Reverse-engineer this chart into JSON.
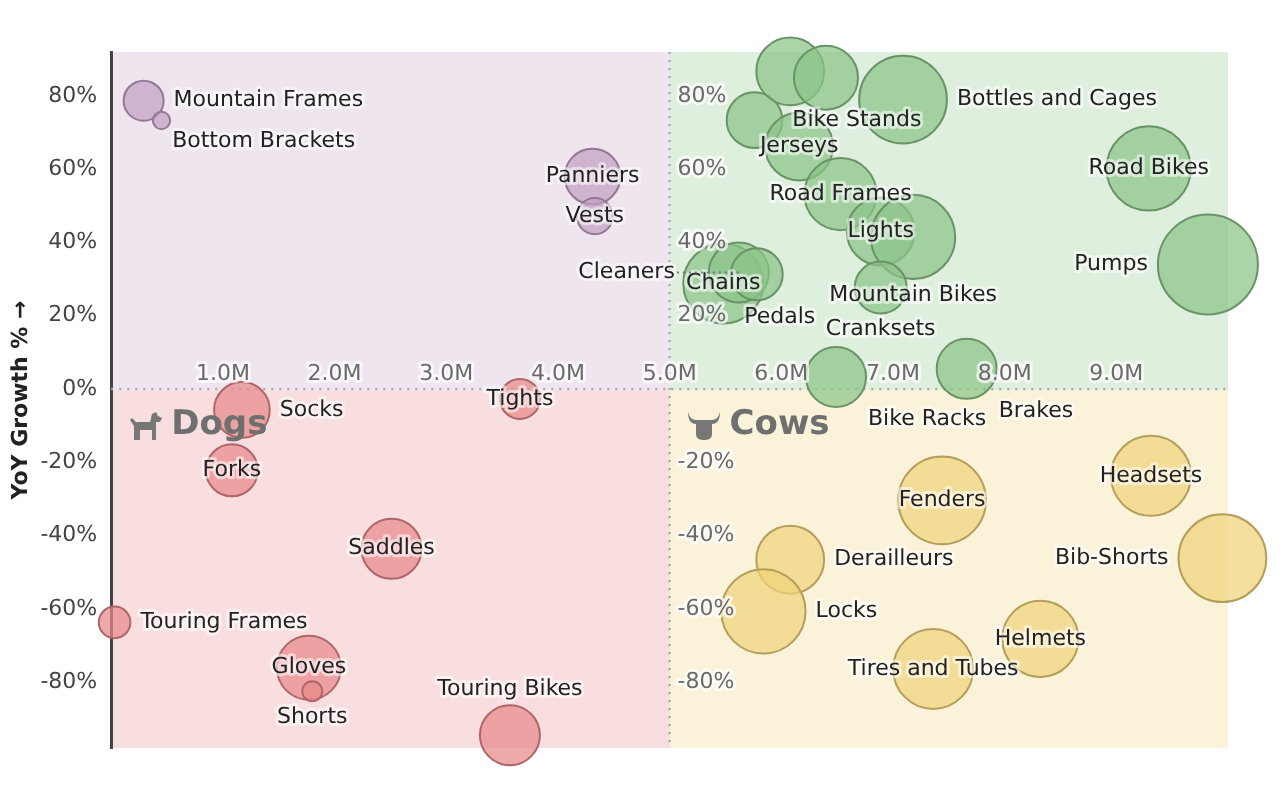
{
  "chart_data": {
    "type": "bubble",
    "ylabel": "YoY Growth % →",
    "grid": false,
    "legend": false,
    "xlim": [
      0,
      10
    ],
    "xticks": [
      {
        "value": 1,
        "label": "1.0M"
      },
      {
        "value": 2,
        "label": "2.0M"
      },
      {
        "value": 3,
        "label": "3.0M"
      },
      {
        "value": 4,
        "label": "4.0M"
      },
      {
        "value": 5,
        "label": "5.0M"
      },
      {
        "value": 6,
        "label": "6.0M"
      },
      {
        "value": 7,
        "label": "7.0M"
      },
      {
        "value": 8,
        "label": "8.0M"
      },
      {
        "value": 9,
        "label": "9.0M"
      }
    ],
    "ylim": [
      -98,
      92
    ],
    "yticks": [
      {
        "value": -80,
        "label": "-80%"
      },
      {
        "value": -60,
        "label": "-60%"
      },
      {
        "value": -40,
        "label": "-40%"
      },
      {
        "value": -20,
        "label": "-20%"
      },
      {
        "value": 0,
        "label": "0%"
      },
      {
        "value": 20,
        "label": "20%"
      },
      {
        "value": 40,
        "label": "40%"
      },
      {
        "value": 60,
        "label": "60%"
      },
      {
        "value": 80,
        "label": "80%"
      }
    ],
    "ref_lines": [
      {
        "axis": "x",
        "value": 5,
        "line_style": "dotted",
        "color": "#aaaaaa"
      },
      {
        "axis": "y",
        "value": 0,
        "line_style": "dotted",
        "color": "#aaaaaa"
      }
    ],
    "series": [
      {
        "color": "#c4a0c4",
        "x": [
          0.29,
          0.45,
          4.31,
          4.33
        ],
        "values": [
          78.7,
          73.3,
          58,
          47.2
        ],
        "sizes": [
          0.16,
          0.03,
          0.31,
          0.13
        ]
      },
      {
        "color": "#8cc488",
        "x": [
          5.76,
          6.16,
          6.53,
          6.89,
          7.18,
          7.09,
          9.29,
          9.82,
          5.48,
          5.62,
          5.78,
          6.89,
          6.49,
          7.66,
          6.08,
          6.4
        ],
        "values": [
          73.4,
          66.2,
          53.2,
          43.0,
          41.5,
          79.0,
          60.2,
          34.0,
          28.8,
          31.8,
          31.3,
          27.7,
          3.3,
          5.5,
          86.7,
          85
        ],
        "sizes": [
          0.31,
          0.46,
          0.52,
          0.46,
          0.71,
          0.77,
          0.71,
          1,
          0.64,
          0.36,
          0.27,
          0.27,
          0.36,
          0.36,
          0.46,
          0.41
        ]
      },
      {
        "color": "#e8898b",
        "x": [
          1.17,
          3.66,
          1.08,
          2.51,
          0.03,
          1.77,
          1.8,
          3.57
        ],
        "values": [
          -5.7,
          -2.7,
          -22.2,
          -43.6,
          -63.7,
          -76.1,
          -82.5,
          -94.5
        ],
        "sizes": [
          0.31,
          0.16,
          0.27,
          0.36,
          0.1,
          0.41,
          0.04,
          0.36
        ]
      },
      {
        "color": "#f0d27a",
        "x": [
          7.44,
          9.31,
          6.08,
          9.95,
          5.84,
          8.32,
          7.36
        ],
        "values": [
          -30.4,
          -23.7,
          -46.6,
          -46.2,
          -60.7,
          -68.2,
          -76.4
        ],
        "sizes": [
          0.77,
          0.64,
          0.46,
          0.77,
          0.71,
          0.58,
          0.64
        ]
      }
    ],
    "annotations": [
      "Dogs",
      "Cows",
      {
        "text": "Mountain Frames",
        "x": 0.29,
        "y": 78.7
      },
      {
        "text": "Bottom Brackets",
        "x": 0.45,
        "y": 73.3
      },
      {
        "text": "Panniers",
        "x": 4.31,
        "y": 58
      },
      {
        "text": "Vests",
        "x": 4.33,
        "y": 47.2
      },
      {
        "text": "Bike Stands",
        "x": 5.76,
        "y": 73.4
      },
      {
        "text": "Jerseys",
        "x": 6.16,
        "y": 66.2
      },
      {
        "text": "Road Frames",
        "x": 6.53,
        "y": 53.2
      },
      {
        "text": "Lights",
        "x": 6.89,
        "y": 43.0
      },
      {
        "text": "Mountain Bikes",
        "x": 7.18,
        "y": 41.5
      },
      {
        "text": "Bottles and Cages",
        "x": 7.09,
        "y": 79.0
      },
      {
        "text": "Road Bikes",
        "x": 9.29,
        "y": 60.2
      },
      {
        "text": "Pumps",
        "x": 9.82,
        "y": 34.0
      },
      {
        "text": "Chains",
        "x": 5.48,
        "y": 28.8
      },
      {
        "text": "Cleaners",
        "x": 5.62,
        "y": 31.8
      },
      {
        "text": "Pedals",
        "x": 5.78,
        "y": 31.3
      },
      {
        "text": "Cranksets",
        "x": 6.89,
        "y": 27.7
      },
      {
        "text": "Bike Racks",
        "x": 6.49,
        "y": 3.3
      },
      {
        "text": "Brakes",
        "x": 7.66,
        "y": 5.5
      },
      {
        "text": "Socks",
        "x": 1.17,
        "y": -5.7
      },
      {
        "text": "Tights",
        "x": 3.66,
        "y": -2.7
      },
      {
        "text": "Forks",
        "x": 1.08,
        "y": -22.2
      },
      {
        "text": "Saddles",
        "x": 2.51,
        "y": -43.6
      },
      {
        "text": "Touring Frames",
        "x": 0.03,
        "y": -63.7
      },
      {
        "text": "Gloves",
        "x": 1.77,
        "y": -76.1
      },
      {
        "text": "Shorts",
        "x": 1.8,
        "y": -82.5
      },
      {
        "text": "Touring Bikes",
        "x": 3.57,
        "y": -94.5
      },
      {
        "text": "Fenders",
        "x": 7.44,
        "y": -30.4
      },
      {
        "text": "Headsets",
        "x": 9.31,
        "y": -23.7
      },
      {
        "text": "Derailleurs",
        "x": 6.08,
        "y": -46.6
      },
      {
        "text": "Bib-Shorts",
        "x": 9.95,
        "y": -46.2
      },
      {
        "text": "Locks",
        "x": 5.84,
        "y": -60.7
      },
      {
        "text": "Helmets",
        "x": 8.32,
        "y": -68.2
      },
      {
        "text": "Tires and Tubes",
        "x": 7.36,
        "y": -76.4
      }
    ]
  }
}
